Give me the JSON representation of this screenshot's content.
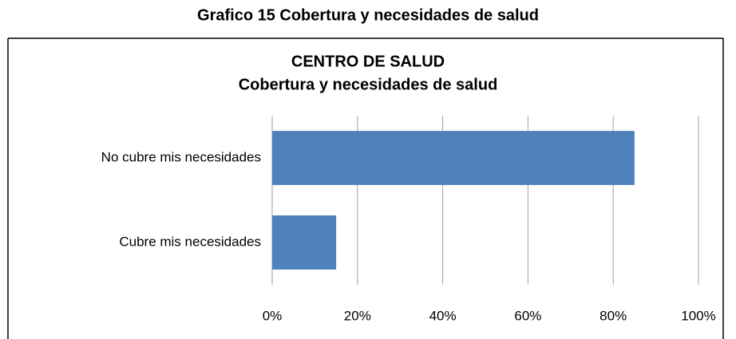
{
  "heading": "Grafico 15 Cobertura y necesidades de salud",
  "chart_data": {
    "type": "hbar",
    "title": [
      "CENTRO DE SALUD",
      "Cobertura y necesidades de salud"
    ],
    "categories": [
      "No cubre mis necesidades",
      "Cubre mis necesidades"
    ],
    "values": [
      85,
      15
    ],
    "color": "#4f81bd",
    "xlim": [
      0,
      100
    ],
    "xticks": [
      {
        "value": 0,
        "label": "0%"
      },
      {
        "value": 20,
        "label": "20%"
      },
      {
        "value": 40,
        "label": "40%"
      },
      {
        "value": 60,
        "label": "60%"
      },
      {
        "value": 80,
        "label": "80%"
      },
      {
        "value": 100,
        "label": "100%"
      }
    ],
    "grid": true
  }
}
